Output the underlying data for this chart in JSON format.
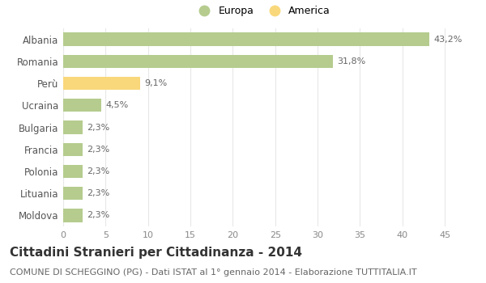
{
  "categories": [
    "Albania",
    "Romania",
    "Perù",
    "Ucraina",
    "Bulgaria",
    "Francia",
    "Polonia",
    "Lituania",
    "Moldova"
  ],
  "values": [
    43.2,
    31.8,
    9.1,
    4.5,
    2.3,
    2.3,
    2.3,
    2.3,
    2.3
  ],
  "labels": [
    "43,2%",
    "31,8%",
    "9,1%",
    "4,5%",
    "2,3%",
    "2,3%",
    "2,3%",
    "2,3%",
    "2,3%"
  ],
  "colors": [
    "#b5cc8e",
    "#b5cc8e",
    "#f9d87c",
    "#b5cc8e",
    "#b5cc8e",
    "#b5cc8e",
    "#b5cc8e",
    "#b5cc8e",
    "#b5cc8e"
  ],
  "legend_labels": [
    "Europa",
    "America"
  ],
  "legend_colors": [
    "#b5cc8e",
    "#f9d87c"
  ],
  "title": "Cittadini Stranieri per Cittadinanza - 2014",
  "subtitle": "COMUNE DI SCHEGGINO (PG) - Dati ISTAT al 1° gennaio 2014 - Elaborazione TUTTITALIA.IT",
  "xlim": [
    0,
    47
  ],
  "xticks": [
    0,
    5,
    10,
    15,
    20,
    25,
    30,
    35,
    40,
    45
  ],
  "background_color": "#ffffff",
  "plot_bg_color": "#ffffff",
  "grid_color": "#e8e8e8",
  "bar_height": 0.6,
  "title_fontsize": 11,
  "subtitle_fontsize": 8
}
